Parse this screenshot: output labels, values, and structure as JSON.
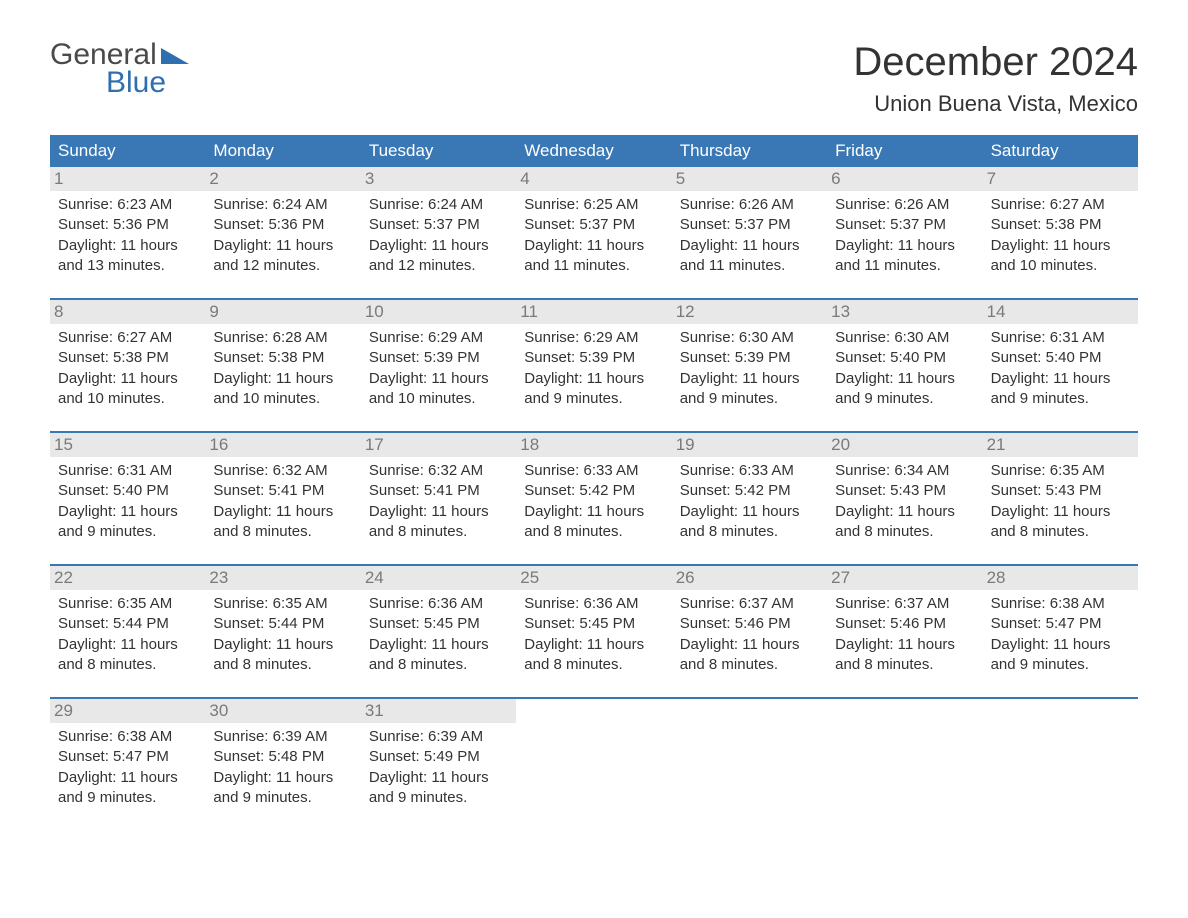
{
  "logo": {
    "text_top": "General",
    "text_bottom": "Blue"
  },
  "title": "December 2024",
  "location": "Union Buena Vista, Mexico",
  "colors": {
    "header_bg": "#3a78b5",
    "header_text": "#ffffff",
    "week_border": "#3a78b5",
    "daynum_bg": "#e8e8e8",
    "daynum_text": "#7a7a7a",
    "body_text": "#333333",
    "logo_gray": "#4a4a4a",
    "logo_blue": "#2f6fb0",
    "page_bg": "#ffffff"
  },
  "day_names": [
    "Sunday",
    "Monday",
    "Tuesday",
    "Wednesday",
    "Thursday",
    "Friday",
    "Saturday"
  ],
  "labels": {
    "sunrise": "Sunrise:",
    "sunset": "Sunset:",
    "daylight": "Daylight:"
  },
  "weeks": [
    [
      {
        "n": "1",
        "sunrise": "6:23 AM",
        "sunset": "5:36 PM",
        "daylight1": "11 hours",
        "daylight2": "and 13 minutes."
      },
      {
        "n": "2",
        "sunrise": "6:24 AM",
        "sunset": "5:36 PM",
        "daylight1": "11 hours",
        "daylight2": "and 12 minutes."
      },
      {
        "n": "3",
        "sunrise": "6:24 AM",
        "sunset": "5:37 PM",
        "daylight1": "11 hours",
        "daylight2": "and 12 minutes."
      },
      {
        "n": "4",
        "sunrise": "6:25 AM",
        "sunset": "5:37 PM",
        "daylight1": "11 hours",
        "daylight2": "and 11 minutes."
      },
      {
        "n": "5",
        "sunrise": "6:26 AM",
        "sunset": "5:37 PM",
        "daylight1": "11 hours",
        "daylight2": "and 11 minutes."
      },
      {
        "n": "6",
        "sunrise": "6:26 AM",
        "sunset": "5:37 PM",
        "daylight1": "11 hours",
        "daylight2": "and 11 minutes."
      },
      {
        "n": "7",
        "sunrise": "6:27 AM",
        "sunset": "5:38 PM",
        "daylight1": "11 hours",
        "daylight2": "and 10 minutes."
      }
    ],
    [
      {
        "n": "8",
        "sunrise": "6:27 AM",
        "sunset": "5:38 PM",
        "daylight1": "11 hours",
        "daylight2": "and 10 minutes."
      },
      {
        "n": "9",
        "sunrise": "6:28 AM",
        "sunset": "5:38 PM",
        "daylight1": "11 hours",
        "daylight2": "and 10 minutes."
      },
      {
        "n": "10",
        "sunrise": "6:29 AM",
        "sunset": "5:39 PM",
        "daylight1": "11 hours",
        "daylight2": "and 10 minutes."
      },
      {
        "n": "11",
        "sunrise": "6:29 AM",
        "sunset": "5:39 PM",
        "daylight1": "11 hours",
        "daylight2": "and 9 minutes."
      },
      {
        "n": "12",
        "sunrise": "6:30 AM",
        "sunset": "5:39 PM",
        "daylight1": "11 hours",
        "daylight2": "and 9 minutes."
      },
      {
        "n": "13",
        "sunrise": "6:30 AM",
        "sunset": "5:40 PM",
        "daylight1": "11 hours",
        "daylight2": "and 9 minutes."
      },
      {
        "n": "14",
        "sunrise": "6:31 AM",
        "sunset": "5:40 PM",
        "daylight1": "11 hours",
        "daylight2": "and 9 minutes."
      }
    ],
    [
      {
        "n": "15",
        "sunrise": "6:31 AM",
        "sunset": "5:40 PM",
        "daylight1": "11 hours",
        "daylight2": "and 9 minutes."
      },
      {
        "n": "16",
        "sunrise": "6:32 AM",
        "sunset": "5:41 PM",
        "daylight1": "11 hours",
        "daylight2": "and 8 minutes."
      },
      {
        "n": "17",
        "sunrise": "6:32 AM",
        "sunset": "5:41 PM",
        "daylight1": "11 hours",
        "daylight2": "and 8 minutes."
      },
      {
        "n": "18",
        "sunrise": "6:33 AM",
        "sunset": "5:42 PM",
        "daylight1": "11 hours",
        "daylight2": "and 8 minutes."
      },
      {
        "n": "19",
        "sunrise": "6:33 AM",
        "sunset": "5:42 PM",
        "daylight1": "11 hours",
        "daylight2": "and 8 minutes."
      },
      {
        "n": "20",
        "sunrise": "6:34 AM",
        "sunset": "5:43 PM",
        "daylight1": "11 hours",
        "daylight2": "and 8 minutes."
      },
      {
        "n": "21",
        "sunrise": "6:35 AM",
        "sunset": "5:43 PM",
        "daylight1": "11 hours",
        "daylight2": "and 8 minutes."
      }
    ],
    [
      {
        "n": "22",
        "sunrise": "6:35 AM",
        "sunset": "5:44 PM",
        "daylight1": "11 hours",
        "daylight2": "and 8 minutes."
      },
      {
        "n": "23",
        "sunrise": "6:35 AM",
        "sunset": "5:44 PM",
        "daylight1": "11 hours",
        "daylight2": "and 8 minutes."
      },
      {
        "n": "24",
        "sunrise": "6:36 AM",
        "sunset": "5:45 PM",
        "daylight1": "11 hours",
        "daylight2": "and 8 minutes."
      },
      {
        "n": "25",
        "sunrise": "6:36 AM",
        "sunset": "5:45 PM",
        "daylight1": "11 hours",
        "daylight2": "and 8 minutes."
      },
      {
        "n": "26",
        "sunrise": "6:37 AM",
        "sunset": "5:46 PM",
        "daylight1": "11 hours",
        "daylight2": "and 8 minutes."
      },
      {
        "n": "27",
        "sunrise": "6:37 AM",
        "sunset": "5:46 PM",
        "daylight1": "11 hours",
        "daylight2": "and 8 minutes."
      },
      {
        "n": "28",
        "sunrise": "6:38 AM",
        "sunset": "5:47 PM",
        "daylight1": "11 hours",
        "daylight2": "and 9 minutes."
      }
    ],
    [
      {
        "n": "29",
        "sunrise": "6:38 AM",
        "sunset": "5:47 PM",
        "daylight1": "11 hours",
        "daylight2": "and 9 minutes."
      },
      {
        "n": "30",
        "sunrise": "6:39 AM",
        "sunset": "5:48 PM",
        "daylight1": "11 hours",
        "daylight2": "and 9 minutes."
      },
      {
        "n": "31",
        "sunrise": "6:39 AM",
        "sunset": "5:49 PM",
        "daylight1": "11 hours",
        "daylight2": "and 9 minutes."
      },
      null,
      null,
      null,
      null
    ]
  ]
}
